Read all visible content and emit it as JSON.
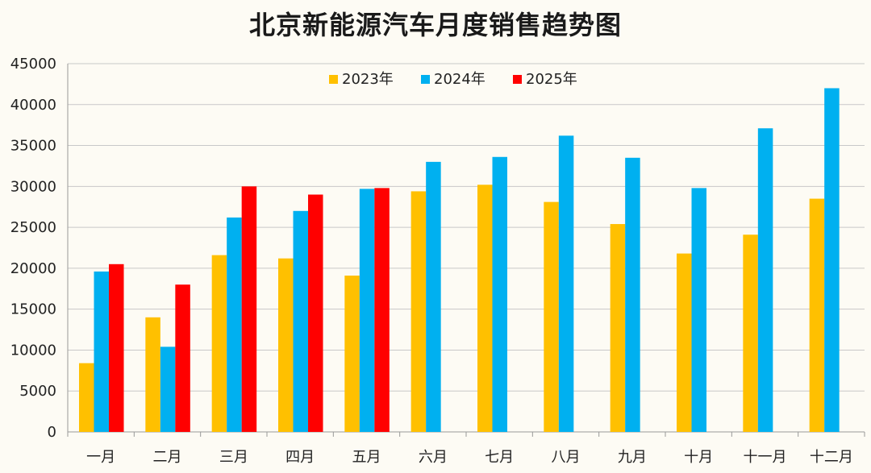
{
  "chart_data": {
    "type": "bar",
    "title": "北京新能源汽车月度销售趋势图",
    "xlabel": "",
    "ylabel": "",
    "ylim": [
      0,
      45000
    ],
    "yticks": [
      0,
      5000,
      10000,
      15000,
      20000,
      25000,
      30000,
      35000,
      40000,
      45000
    ],
    "grid": true,
    "legend_position": "top-center",
    "categories": [
      "一月",
      "二月",
      "三月",
      "四月",
      "五月",
      "六月",
      "七月",
      "八月",
      "九月",
      "十月",
      "十一月",
      "十二月"
    ],
    "series": [
      {
        "name": "2023年",
        "color": "#ffc000",
        "values": [
          8400,
          14000,
          21600,
          21200,
          19100,
          29400,
          30200,
          28100,
          25400,
          21800,
          24100,
          28500
        ]
      },
      {
        "name": "2024年",
        "color": "#00b0f0",
        "values": [
          19600,
          10400,
          26200,
          27000,
          29700,
          33000,
          33600,
          36200,
          33500,
          29800,
          37100,
          42000
        ]
      },
      {
        "name": "2025年",
        "color": "#ff0000",
        "values": [
          20500,
          18000,
          30000,
          29000,
          29800,
          null,
          null,
          null,
          null,
          null,
          null,
          null
        ]
      }
    ]
  }
}
